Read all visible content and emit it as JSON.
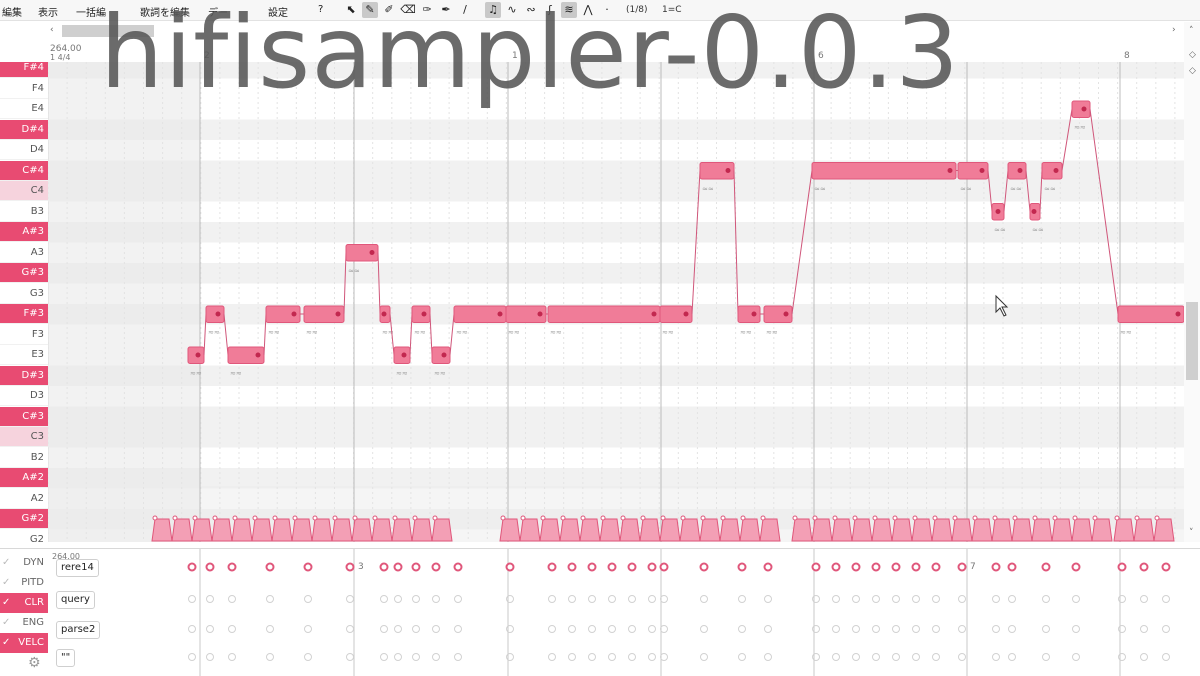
{
  "menu": {
    "items": [
      "編集",
      "表示",
      "一括編",
      "歌詞を編集",
      "デー",
      "設定",
      "?"
    ],
    "snap": "(1/8)",
    "key": "1=C"
  },
  "ruler": {
    "tempo": "264.00",
    "time_signature": "1 4/4",
    "bars": [
      {
        "label": "2",
        "x": 152
      },
      {
        "label": "1",
        "x": 460
      },
      {
        "label": "6",
        "x": 766
      },
      {
        "label": "8",
        "x": 1072
      }
    ]
  },
  "piano_keys": [
    {
      "label": "F#4",
      "color": "black"
    },
    {
      "label": "F4",
      "color": "white"
    },
    {
      "label": "E4",
      "color": "white"
    },
    {
      "label": "D#4",
      "color": "black"
    },
    {
      "label": "D4",
      "color": "white"
    },
    {
      "label": "C#4",
      "color": "black"
    },
    {
      "label": "C4",
      "color": "light"
    },
    {
      "label": "B3",
      "color": "white"
    },
    {
      "label": "A#3",
      "color": "black"
    },
    {
      "label": "A3",
      "color": "white"
    },
    {
      "label": "G#3",
      "color": "black"
    },
    {
      "label": "G3",
      "color": "white"
    },
    {
      "label": "F#3",
      "color": "black"
    },
    {
      "label": "F3",
      "color": "white"
    },
    {
      "label": "E3",
      "color": "white"
    },
    {
      "label": "D#3",
      "color": "black"
    },
    {
      "label": "D3",
      "color": "white"
    },
    {
      "label": "C#3",
      "color": "black"
    },
    {
      "label": "C3",
      "color": "light"
    },
    {
      "label": "B2",
      "color": "white"
    },
    {
      "label": "A#2",
      "color": "black"
    },
    {
      "label": "A2",
      "color": "white"
    },
    {
      "label": "G#2",
      "color": "black"
    },
    {
      "label": "G2",
      "color": "white"
    }
  ],
  "expressions": [
    {
      "label": "DYN",
      "active": false
    },
    {
      "label": "PITD",
      "active": false
    },
    {
      "label": "CLR",
      "active": true
    },
    {
      "label": "ENG",
      "active": false
    },
    {
      "label": "VELC",
      "active": true
    }
  ],
  "lower_chips": [
    "rere14",
    "query",
    "parse2",
    "\"\""
  ],
  "lower_ruler": {
    "tempo": "264.00",
    "bars": [
      {
        "label": "3",
        "x": 308
      },
      {
        "label": "7",
        "x": 920
      }
    ]
  },
  "watermark": "hifisampler-0.0.3",
  "colors": {
    "accent": "#e84b72",
    "note": "#f07c98",
    "note_border": "#e0577b"
  }
}
